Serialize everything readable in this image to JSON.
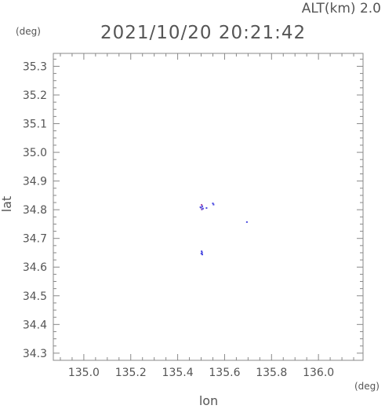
{
  "chart_data": {
    "type": "scatter",
    "title": "2021/10/20 20:21:42",
    "subtitle": "ALT(km) 2.0",
    "xlabel": "lon",
    "ylabel": "lat",
    "xunit": "(deg)",
    "yunit": "(deg)",
    "xlim": [
      134.87,
      136.19
    ],
    "ylim": [
      34.275,
      35.345
    ],
    "xticks": [
      "135.0",
      "135.2",
      "135.4",
      "135.6",
      "135.8",
      "136.0"
    ],
    "yticks": [
      "34.3",
      "34.4",
      "34.5",
      "34.6",
      "34.7",
      "34.8",
      "34.9",
      "35.0",
      "35.1",
      "35.2",
      "35.3"
    ],
    "grid": false,
    "points": [
      {
        "x": 135.502,
        "y": 34.817,
        "color": "#b04aa0"
      },
      {
        "x": 135.505,
        "y": 34.812,
        "color": "#4a4ae0"
      },
      {
        "x": 135.5,
        "y": 34.807,
        "color": "#6a4ad0"
      },
      {
        "x": 135.508,
        "y": 34.804,
        "color": "#4a4ae0"
      },
      {
        "x": 135.503,
        "y": 34.801,
        "color": "#7a4ac0"
      },
      {
        "x": 135.497,
        "y": 34.809,
        "color": "#4a4ae0"
      },
      {
        "x": 135.523,
        "y": 34.806,
        "color": "#4a4ae0"
      },
      {
        "x": 135.55,
        "y": 34.822,
        "color": "#4a4ae0"
      },
      {
        "x": 135.553,
        "y": 34.818,
        "color": "#4a4ae0"
      },
      {
        "x": 135.695,
        "y": 34.757,
        "color": "#4a4ae0"
      },
      {
        "x": 135.502,
        "y": 34.655,
        "color": "#4a4ae0"
      },
      {
        "x": 135.504,
        "y": 34.651,
        "color": "#4a4ae0"
      },
      {
        "x": 135.501,
        "y": 34.647,
        "color": "#4a4ae0"
      },
      {
        "x": 135.505,
        "y": 34.644,
        "color": "#4a4ae0"
      }
    ]
  }
}
